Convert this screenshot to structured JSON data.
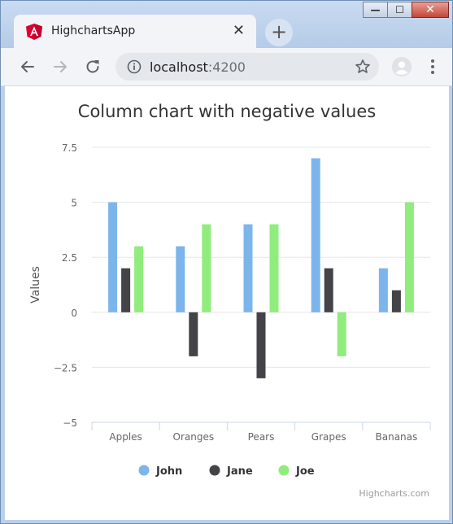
{
  "browser": {
    "tab_title": "HighchartsApp",
    "tab_close_glyph": "✕",
    "new_tab_glyph": "+",
    "url_host": "localhost",
    "url_port": ":4200",
    "icons": {
      "tab_logo": "angular-logo-icon",
      "back": "back-arrow-icon",
      "forward": "forward-arrow-icon",
      "reload": "reload-icon",
      "info": "info-icon",
      "bookmark": "star-icon",
      "profile": "avatar-icon",
      "menu": "kebab-menu-icon"
    },
    "window_controls": {
      "minimize": "—",
      "maximize": "☐",
      "close": "✕"
    }
  },
  "chart_data": {
    "type": "bar",
    "title": "Column chart with negative values",
    "xlabel": "",
    "ylabel": "Values",
    "categories": [
      "Apples",
      "Oranges",
      "Pears",
      "Grapes",
      "Bananas"
    ],
    "series": [
      {
        "name": "John",
        "values": [
          5,
          3,
          4,
          7,
          2
        ],
        "color": "#7cb5ec"
      },
      {
        "name": "Jane",
        "values": [
          2,
          -2,
          -3,
          2,
          1
        ],
        "color": "#434348"
      },
      {
        "name": "Joe",
        "values": [
          3,
          4,
          4,
          -2,
          5
        ],
        "color": "#90ed7d"
      }
    ],
    "ylim": [
      -5,
      7.5
    ],
    "yticks": [
      7.5,
      5,
      2.5,
      0,
      -2.5,
      -5
    ],
    "ytick_labels": [
      "7.5",
      "5",
      "2.5",
      "0",
      "−2.5",
      "−5"
    ],
    "grid": true,
    "legend_position": "bottom",
    "credits": "Highcharts.com"
  }
}
